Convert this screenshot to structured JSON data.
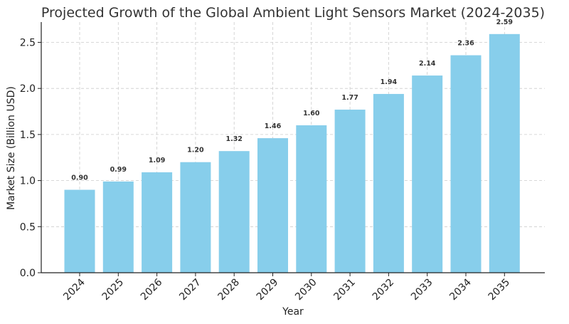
{
  "chart_data": {
    "type": "bar",
    "title": "Projected Growth of the Global Ambient Light Sensors Market (2024-2035)",
    "xlabel": "Year",
    "ylabel": "Market Size (Billion USD)",
    "categories": [
      "2024",
      "2025",
      "2026",
      "2027",
      "2028",
      "2029",
      "2030",
      "2031",
      "2032",
      "2033",
      "2034",
      "2035"
    ],
    "values": [
      0.9,
      0.99,
      1.09,
      1.2,
      1.32,
      1.46,
      1.6,
      1.77,
      1.94,
      2.14,
      2.36,
      2.59
    ],
    "data_labels": [
      "0.90",
      "0.99",
      "1.09",
      "1.20",
      "1.32",
      "1.46",
      "1.60",
      "1.77",
      "1.94",
      "2.14",
      "2.36",
      "2.59"
    ],
    "yticks": [
      "0.0",
      "0.5",
      "1.0",
      "1.5",
      "2.0",
      "2.5"
    ],
    "ylim": [
      0,
      2.72
    ],
    "bar_color": "#87CEEB",
    "grid": true
  }
}
